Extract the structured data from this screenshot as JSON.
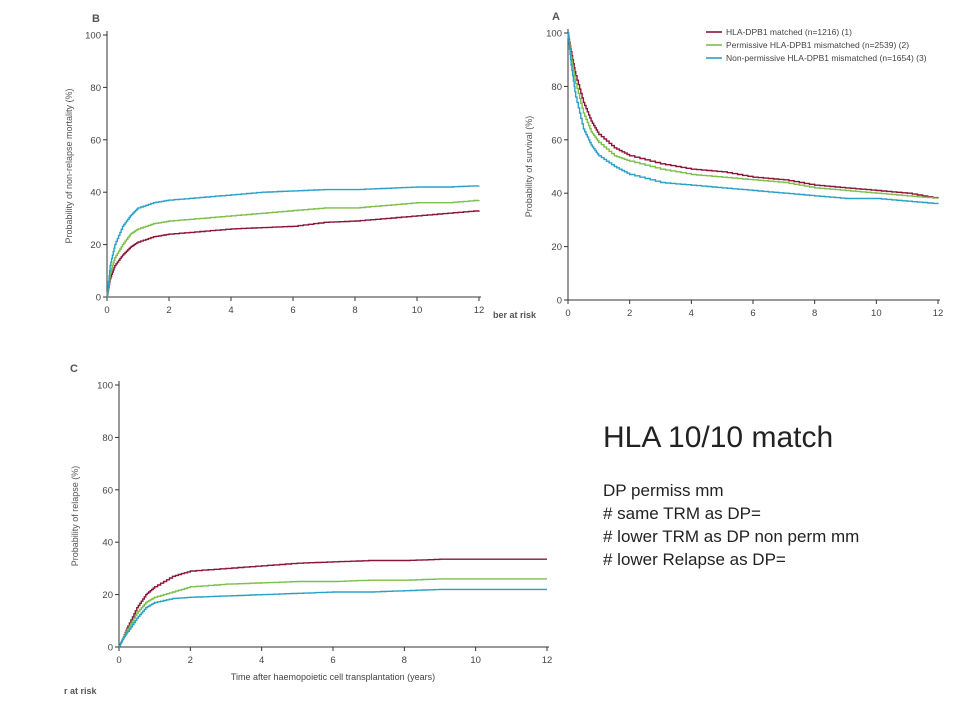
{
  "slide": {
    "title": "HLA 10/10 match",
    "bullets": [
      "DP permiss mm",
      "# same TRM as DP=",
      "# lower TRM as DP non perm mm",
      "# lower Relapse as DP="
    ],
    "risk_label": "ber at risk",
    "risk_label_c": "r at risk"
  },
  "colors": {
    "matched": "#8b1538",
    "permissive": "#7cbf4a",
    "nonpermissive": "#2aa0c8"
  },
  "chart_data": [
    {
      "id": "A",
      "type": "line",
      "panel_label": "A",
      "ylabel": "Probability of survival (%)",
      "xlabel": "",
      "xlim": [
        0,
        12
      ],
      "ylim": [
        0,
        100
      ],
      "xticks": [
        0,
        2,
        4,
        6,
        8,
        10,
        12
      ],
      "yticks": [
        0,
        20,
        40,
        60,
        80,
        100
      ],
      "legend_position": "top-right",
      "series": [
        {
          "key": "matched",
          "name": "HLA-DPB1 matched (n=1216) (1)",
          "x": [
            0,
            0.1,
            0.25,
            0.5,
            0.75,
            1,
            1.5,
            2,
            3,
            4,
            5,
            6,
            7,
            8,
            9,
            10,
            11,
            12
          ],
          "y": [
            100,
            93,
            84,
            74,
            67,
            62,
            57,
            54,
            51,
            49,
            48,
            46,
            45,
            43,
            42,
            41,
            40,
            38
          ]
        },
        {
          "key": "permissive",
          "name": "Permissive HLA-DPB1 mismatched (n=2539) (2)",
          "x": [
            0,
            0.1,
            0.25,
            0.5,
            0.75,
            1,
            1.5,
            2,
            3,
            4,
            5,
            6,
            7,
            8,
            9,
            10,
            11,
            12
          ],
          "y": [
            100,
            91,
            81,
            70,
            63,
            59,
            54,
            52,
            49,
            47,
            46,
            45,
            44,
            42,
            41,
            40,
            39,
            38
          ]
        },
        {
          "key": "nonpermissive",
          "name": "Non-permissive HLA-DPB1 mismatched (n=1654) (3)",
          "x": [
            0,
            0.1,
            0.25,
            0.5,
            0.75,
            1,
            1.5,
            2,
            3,
            4,
            5,
            6,
            7,
            8,
            9,
            10,
            11,
            12
          ],
          "y": [
            100,
            88,
            76,
            64,
            58,
            54,
            50,
            47,
            44,
            43,
            42,
            41,
            40,
            39,
            38,
            38,
            37,
            36
          ]
        }
      ]
    },
    {
      "id": "B",
      "type": "line",
      "panel_label": "B",
      "ylabel": "Probability of non-relapse mortality (%)",
      "xlabel": "",
      "xlim": [
        0,
        12
      ],
      "ylim": [
        0,
        100
      ],
      "xticks": [
        0,
        2,
        4,
        6,
        8,
        10,
        12
      ],
      "yticks": [
        0,
        20,
        40,
        60,
        80,
        100
      ],
      "series": [
        {
          "key": "matched",
          "x": [
            0,
            0.1,
            0.25,
            0.5,
            0.75,
            1,
            1.5,
            2,
            3,
            4,
            5,
            6,
            7,
            8,
            9,
            10,
            11,
            12
          ],
          "y": [
            0,
            7,
            12,
            16,
            19,
            21,
            23,
            24,
            25,
            26,
            26.5,
            27,
            28.5,
            29,
            30,
            31,
            32,
            33
          ]
        },
        {
          "key": "permissive",
          "x": [
            0,
            0.1,
            0.25,
            0.5,
            0.75,
            1,
            1.5,
            2,
            3,
            4,
            5,
            6,
            7,
            8,
            9,
            10,
            11,
            12
          ],
          "y": [
            0,
            9,
            15,
            20,
            24,
            26,
            28,
            29,
            30,
            31,
            32,
            33,
            34,
            34,
            35,
            36,
            36,
            37
          ]
        },
        {
          "key": "nonpermissive",
          "x": [
            0,
            0.1,
            0.25,
            0.5,
            0.75,
            1,
            1.5,
            2,
            3,
            4,
            5,
            6,
            7,
            8,
            9,
            10,
            11,
            12
          ],
          "y": [
            0,
            12,
            20,
            27,
            31,
            34,
            36,
            37,
            38,
            39,
            40,
            40.5,
            41,
            41,
            41.5,
            42,
            42,
            42.5
          ]
        }
      ]
    },
    {
      "id": "C",
      "type": "line",
      "panel_label": "C",
      "ylabel": "Probability of relapse (%)",
      "xlabel": "Time after haemopoietic cell transplantation (years)",
      "xlim": [
        0,
        12
      ],
      "ylim": [
        0,
        100
      ],
      "xticks": [
        0,
        2,
        4,
        6,
        8,
        10,
        12
      ],
      "yticks": [
        0,
        20,
        40,
        60,
        80,
        100
      ],
      "series": [
        {
          "key": "matched",
          "x": [
            0,
            0.1,
            0.25,
            0.5,
            0.75,
            1,
            1.5,
            2,
            3,
            4,
            5,
            6,
            7,
            8,
            9,
            10,
            11,
            12
          ],
          "y": [
            0,
            3,
            8,
            15,
            20,
            23,
            27,
            29,
            30,
            31,
            32,
            32.5,
            33,
            33,
            33.5,
            33.5,
            33.5,
            33.5
          ]
        },
        {
          "key": "permissive",
          "x": [
            0,
            0.1,
            0.25,
            0.5,
            0.75,
            1,
            1.5,
            2,
            3,
            4,
            5,
            6,
            7,
            8,
            9,
            10,
            11,
            12
          ],
          "y": [
            0,
            3,
            7,
            13,
            17,
            19,
            21,
            23,
            24,
            24.5,
            25,
            25,
            25.5,
            25.5,
            26,
            26,
            26,
            26
          ]
        },
        {
          "key": "nonpermissive",
          "x": [
            0,
            0.1,
            0.25,
            0.5,
            0.75,
            1,
            1.5,
            2,
            3,
            4,
            5,
            6,
            7,
            8,
            9,
            10,
            11,
            12
          ],
          "y": [
            0,
            3,
            6,
            11,
            15,
            17,
            18.5,
            19,
            19.5,
            20,
            20.5,
            21,
            21,
            21.5,
            22,
            22,
            22,
            22
          ]
        }
      ]
    }
  ]
}
